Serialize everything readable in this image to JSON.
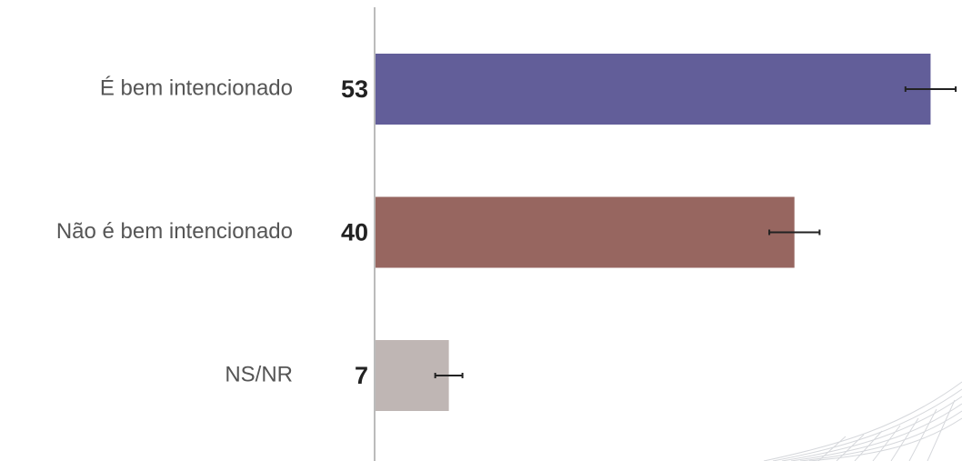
{
  "chart_data": {
    "type": "bar",
    "orientation": "horizontal",
    "categories": [
      "É bem intencionado",
      "Não é bem intencionado",
      "NS/NR"
    ],
    "values": [
      53,
      40,
      7
    ],
    "errors": [
      2.4,
      2.4,
      1.3
    ],
    "colors": [
      "#625e99",
      "#976660",
      "#bfb6b4"
    ],
    "xlim": [
      0,
      56
    ]
  }
}
